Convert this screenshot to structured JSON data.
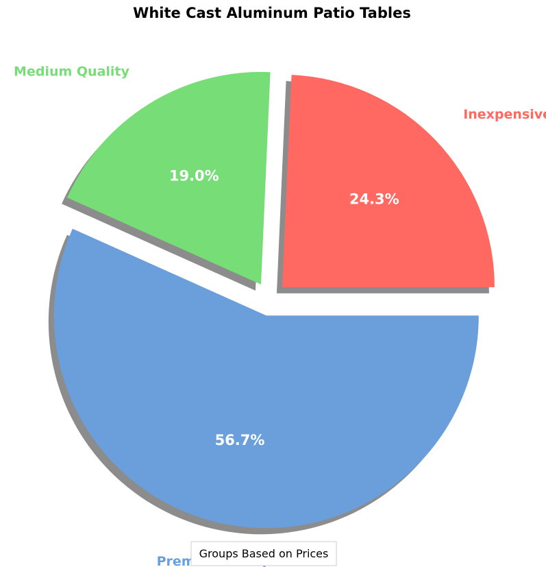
{
  "chart_data": {
    "type": "pie",
    "title": "White Cast Aluminum Patio Tables",
    "slices": [
      {
        "label": "Inexpensive",
        "value": 24.3,
        "pct_label": "24.3%",
        "color": "#ff6961"
      },
      {
        "label": "Medium Quality",
        "value": 19.0,
        "pct_label": "19.0%",
        "color": "#77dd77"
      },
      {
        "label": "Premium Group",
        "value": 56.7,
        "pct_label": "56.7%",
        "color": "#6a9fdc"
      }
    ],
    "legend": {
      "title": "Groups Based on Prices",
      "placement": "bottom-center"
    },
    "shadow": true,
    "exploded": true
  }
}
